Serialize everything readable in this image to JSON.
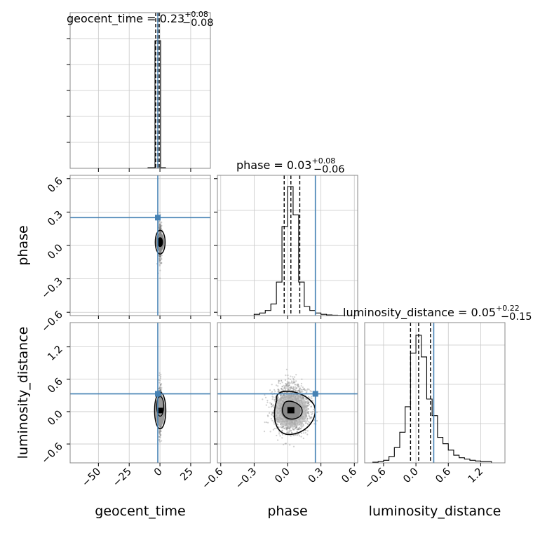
{
  "chart_data": {
    "type": "corner",
    "parameters": [
      "geocent_time",
      "phase",
      "luminosity_distance"
    ],
    "truth_color": "#4682b4",
    "truths": {
      "geocent_time": 0.1,
      "phase": 0.25,
      "luminosity_distance": 0.33
    },
    "titles": [
      {
        "param": "geocent_time",
        "label": "geocent_time = 0.23",
        "plus": "+0.08",
        "minus": "−0.08"
      },
      {
        "param": "phase",
        "label": "phase = 0.03",
        "plus": "+0.08",
        "minus": "−0.06"
      },
      {
        "param": "luminosity_distance",
        "label": "luminosity_distance = 0.05",
        "plus": "+0.22",
        "minus": "−0.15"
      }
    ],
    "axes": {
      "geocent_time": {
        "range": [
          -73,
          41
        ],
        "ticks": [
          -50,
          -25,
          0,
          25
        ],
        "tick_labels": [
          "−50",
          "−25",
          "0",
          "25"
        ]
      },
      "phase": {
        "range": [
          -0.63,
          0.63
        ],
        "ticks": [
          -0.6,
          -0.3,
          0.0,
          0.3,
          0.6
        ],
        "tick_labels": [
          "−0.6",
          "−0.3",
          "0.0",
          "0.3",
          "0.6"
        ]
      },
      "luminosity_distance": {
        "range": [
          -0.95,
          1.65
        ],
        "ticks": [
          -0.6,
          0.0,
          0.6,
          1.2
        ],
        "tick_labels": [
          "−0.6",
          "0.0",
          "0.6",
          "1.2"
        ]
      }
    },
    "quantiles": {
      "geocent_time": [
        0.15,
        0.23,
        0.31
      ],
      "phase": [
        -0.03,
        0.03,
        0.11
      ],
      "luminosity_distance": [
        -0.1,
        0.05,
        0.27
      ]
    },
    "hist_geocent_time": {
      "bin_edges": [
        -1,
        0,
        1,
        2,
        3
      ],
      "heights": [
        0.01,
        1.0,
        1.0,
        0.01
      ]
    },
    "hist_phase": {
      "bin_edges": [
        -0.3,
        -0.25,
        -0.2,
        -0.15,
        -0.1,
        -0.05,
        0.0,
        0.05,
        0.1,
        0.15,
        0.2,
        0.25,
        0.3,
        0.35,
        0.4,
        0.45,
        0.5
      ],
      "heights": [
        0.01,
        0.02,
        0.04,
        0.09,
        0.26,
        0.69,
        1.0,
        0.78,
        0.26,
        0.07,
        0.04,
        0.02,
        0.01,
        0.005,
        0.003,
        0.002
      ]
    },
    "hist_luminosity_distance": {
      "bin_edges": [
        -0.8,
        -0.7,
        -0.6,
        -0.5,
        -0.4,
        -0.3,
        -0.2,
        -0.1,
        0.0,
        0.1,
        0.2,
        0.3,
        0.4,
        0.5,
        0.6,
        0.7,
        0.8,
        0.9,
        1.0,
        1.1,
        1.2,
        1.3,
        1.4
      ],
      "heights": [
        0.005,
        0.01,
        0.02,
        0.05,
        0.12,
        0.24,
        0.44,
        0.86,
        1.0,
        0.83,
        0.5,
        0.37,
        0.2,
        0.15,
        0.1,
        0.06,
        0.04,
        0.03,
        0.02,
        0.015,
        0.01,
        0.01
      ]
    },
    "grid": true,
    "density_color": "#000000"
  }
}
